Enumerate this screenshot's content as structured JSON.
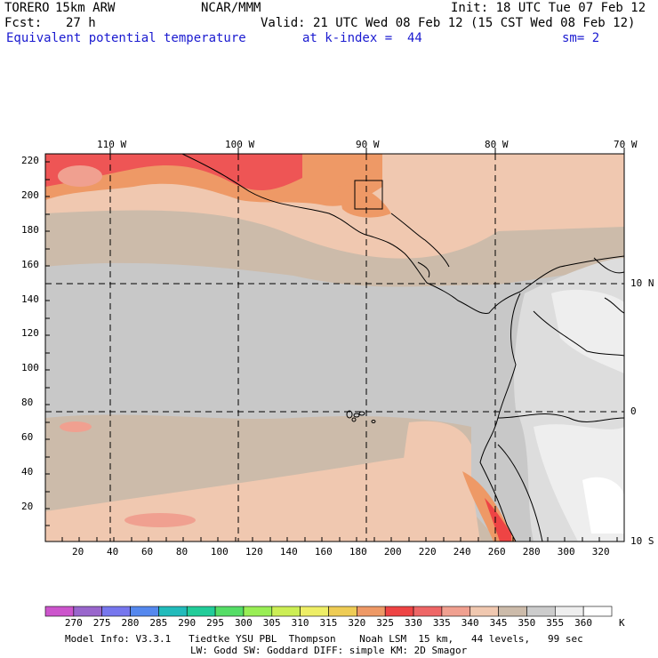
{
  "header": {
    "model": "TORERO",
    "resolution": "15km ARW",
    "org": "NCAR/MMM",
    "init": "Init: 18 UTC Tue 07 Feb 12",
    "fcst_label": "Fcst:",
    "fcst_value": "27 h",
    "valid": "Valid: 21 UTC Wed 08 Feb 12 (15 CST Wed 08 Feb 12)",
    "field": "Equivalent potential temperature",
    "level": "at k-index =  44",
    "smoothing": "sm= 2"
  },
  "map": {
    "lon_labels": [
      {
        "label": "110 W",
        "value": 110
      },
      {
        "label": "100 W",
        "value": 100
      },
      {
        "label": "90 W",
        "value": 90
      },
      {
        "label": "80 W",
        "value": 80
      },
      {
        "label": "70 W",
        "value": 70
      }
    ],
    "lat_labels": [
      {
        "label": "10 N",
        "value": 10
      },
      {
        "label": "0",
        "value": 0
      },
      {
        "label": "10 S",
        "value": -10
      }
    ],
    "y_ticks": [
      20,
      40,
      60,
      80,
      100,
      120,
      140,
      160,
      180,
      200,
      220
    ],
    "x_ticks": [
      20,
      40,
      60,
      80,
      100,
      120,
      140,
      160,
      180,
      200,
      220,
      240,
      260,
      280,
      300,
      320
    ]
  },
  "colorbar": {
    "levels": [
      "270",
      "275",
      "280",
      "285",
      "290",
      "295",
      "300",
      "305",
      "310",
      "315",
      "320",
      "325",
      "330",
      "335",
      "340",
      "345",
      "350",
      "355",
      "360"
    ],
    "unit": "K",
    "colors": [
      "#cc55cc",
      "#9966cc",
      "#7777ee",
      "#5588ee",
      "#22bbbb",
      "#22cc99",
      "#55dd66",
      "#99ee55",
      "#ccee55",
      "#eeee66",
      "#eecc55",
      "#ee9966",
      "#ee4444",
      "#ee6666",
      "#f0a090",
      "#f0c8b0",
      "#ccbbaa",
      "#cccccc",
      "#eeeeee",
      "#ffffff"
    ]
  },
  "footer": {
    "line1": "Model Info: V3.3.1   Tiedtke YSU PBL  Thompson    Noah LSM  15 km,   44 levels,   99 sec",
    "line2": "LW: Godd SW: Goddard DIFF: simple KM: 2D Smagor"
  }
}
